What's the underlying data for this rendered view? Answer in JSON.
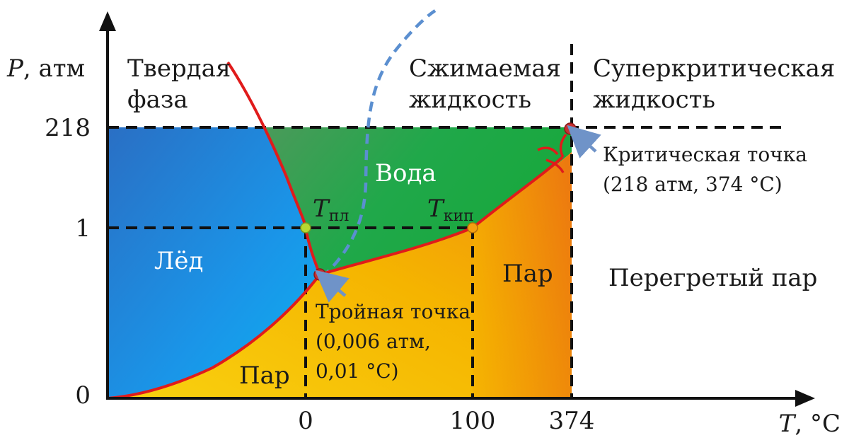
{
  "axes": {
    "y_var": "P",
    "y_unit": ", атм",
    "x_var": "T",
    "x_unit": ", °C",
    "y_ticks": [
      "218",
      "1",
      "0"
    ],
    "x_ticks": [
      "0",
      "100",
      "374"
    ]
  },
  "regions": {
    "solid": [
      "Твердая",
      "фаза"
    ],
    "compressed": [
      "Сжимаемая",
      "жидкость"
    ],
    "supercritical": [
      "Суперкритическая",
      "жидкость"
    ],
    "water": "Вода",
    "ice": "Лёд",
    "vapor_left": "Пар",
    "vapor_right": "Пар",
    "superheated": "Перегретый пар"
  },
  "points": {
    "t_melt_main": "T",
    "t_melt_sub": "пл",
    "t_boil_main": "T",
    "t_boil_sub": "кип",
    "triple": [
      "Тройная точка",
      "(0,006 атм,",
      "0,01 °C)"
    ],
    "critical": [
      "Критическая точка",
      "(218 атм, 374 °C)"
    ]
  },
  "colors": {
    "ice": "#1a8fe0",
    "water": "#2aa84a",
    "vapor": "#f5b400",
    "curve": "#e01b1b",
    "dashed_blue": "#5b8fd0",
    "arrow": "#6f93c8"
  }
}
